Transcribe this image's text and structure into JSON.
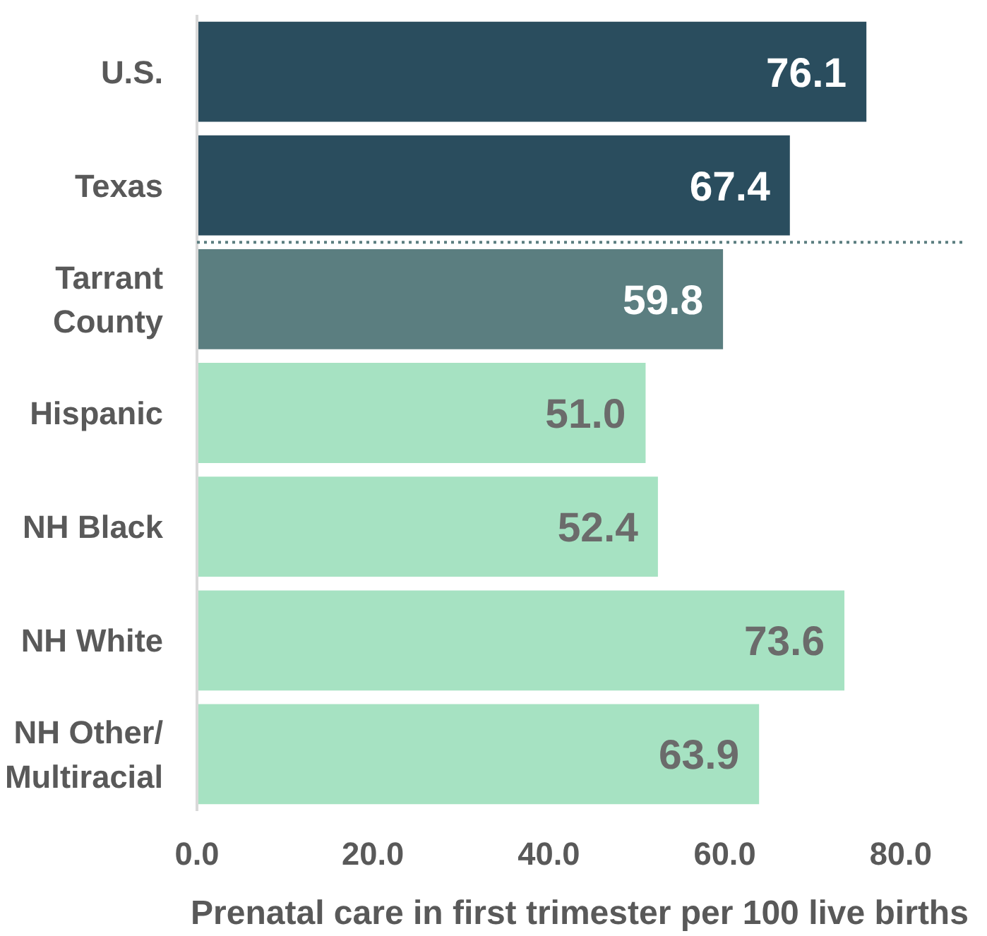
{
  "chart_data": {
    "type": "bar",
    "orientation": "horizontal",
    "xlabel": "Prenatal care in first trimester per 100 live births",
    "categories": [
      "U.S.",
      "Texas",
      "Tarrant County",
      "Hispanic",
      "NH Black",
      "NH White",
      "NH Other/Multiracial"
    ],
    "values": [
      76.1,
      67.4,
      59.8,
      51.0,
      52.4,
      73.6,
      63.9
    ],
    "value_labels": [
      "76.1",
      "67.4",
      "59.8",
      "51.0",
      "52.4",
      "73.6",
      "63.9"
    ],
    "colors": [
      "#2a4d5e",
      "#2a4d5e",
      "#5b7e80",
      "#a6e2c2",
      "#a6e2c2",
      "#a6e2c2",
      "#a6e2c2"
    ],
    "xlim": [
      0,
      87
    ],
    "xticks": [
      {
        "value": 0,
        "label": "0.0"
      },
      {
        "value": 20,
        "label": "20.0"
      },
      {
        "value": 40,
        "label": "40.0"
      },
      {
        "value": 60,
        "label": "60.0"
      },
      {
        "value": 80,
        "label": "80.0"
      }
    ],
    "grid": false
  }
}
